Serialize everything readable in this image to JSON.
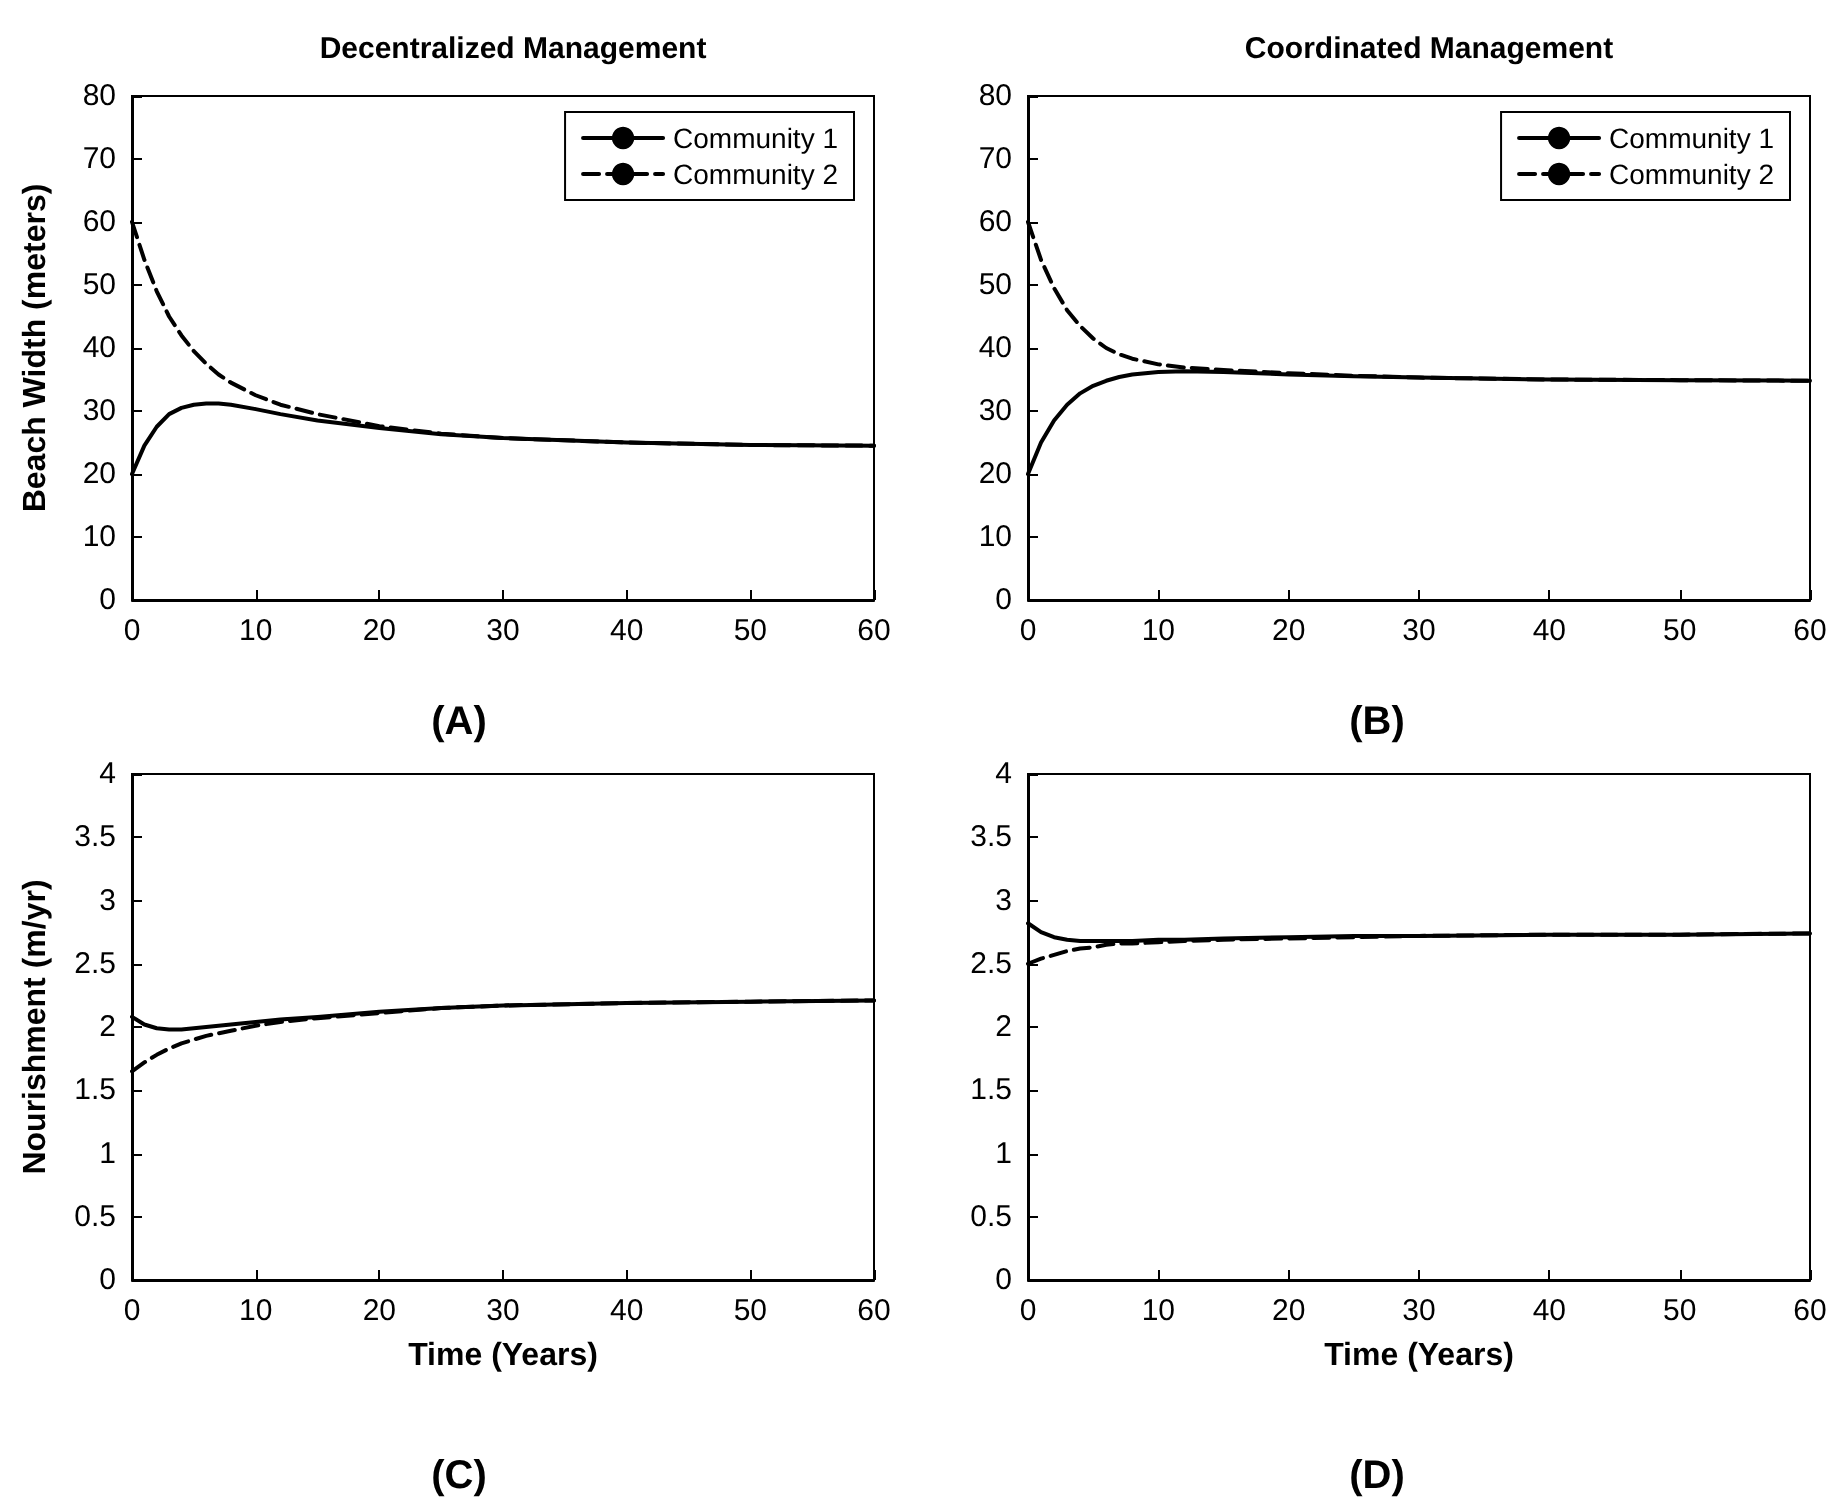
{
  "chart_data": [
    {
      "type": "line",
      "title": "Decentralized Management",
      "ylabel": "Beach Width (meters)",
      "annotations": [
        "(A)"
      ],
      "x": [
        0,
        1,
        2,
        3,
        4,
        5,
        6,
        7,
        8,
        10,
        12,
        15,
        20,
        25,
        30,
        40,
        50,
        60
      ],
      "xlim": [
        0,
        60
      ],
      "xticks": [
        0,
        10,
        20,
        30,
        40,
        50,
        60
      ],
      "ylim": [
        0,
        80
      ],
      "yticks": [
        0,
        10,
        20,
        30,
        40,
        50,
        60,
        70,
        80
      ],
      "grid": false,
      "legend": "top right",
      "marker": "none",
      "series": [
        {
          "name": "Community 1",
          "color": "#000000",
          "line_style": "solid",
          "values": [
            20,
            24.5,
            27.5,
            29.5,
            30.5,
            31,
            31.2,
            31.2,
            31,
            30.3,
            29.5,
            28.5,
            27.3,
            26.3,
            25.7,
            25,
            24.6,
            24.5
          ]
        },
        {
          "name": "Community 2",
          "color": "#000000",
          "line_style": "dashed",
          "values": [
            60,
            54,
            49,
            45,
            42,
            39.5,
            37.5,
            35.8,
            34.5,
            32.5,
            31,
            29.5,
            27.6,
            26.4,
            25.7,
            25,
            24.6,
            24.5
          ]
        }
      ]
    },
    {
      "type": "line",
      "title": "Coordinated Management",
      "annotations": [
        "(B)"
      ],
      "x": [
        0,
        1,
        2,
        3,
        4,
        5,
        6,
        7,
        8,
        10,
        12,
        15,
        20,
        25,
        30,
        40,
        50,
        60
      ],
      "xlim": [
        0,
        60
      ],
      "xticks": [
        0,
        10,
        20,
        30,
        40,
        50,
        60
      ],
      "ylim": [
        0,
        80
      ],
      "yticks": [
        0,
        10,
        20,
        30,
        40,
        50,
        60,
        70,
        80
      ],
      "grid": false,
      "legend": "top right",
      "marker": "none",
      "series": [
        {
          "name": "Community 1",
          "color": "#000000",
          "line_style": "solid",
          "values": [
            20,
            25,
            28.5,
            31,
            32.8,
            34,
            34.8,
            35.4,
            35.8,
            36.2,
            36.3,
            36.2,
            35.8,
            35.5,
            35.3,
            35,
            34.9,
            34.8
          ]
        },
        {
          "name": "Community 2",
          "color": "#000000",
          "line_style": "dashed",
          "values": [
            60,
            54,
            49.5,
            46,
            43.5,
            41.5,
            40,
            39,
            38.3,
            37.4,
            36.9,
            36.5,
            36,
            35.6,
            35.3,
            35,
            34.9,
            34.8
          ]
        }
      ]
    },
    {
      "type": "line",
      "xlabel": "Time (Years)",
      "ylabel": "Nourishment (m/yr)",
      "annotations": [
        "(C)"
      ],
      "x": [
        0,
        1,
        2,
        3,
        4,
        5,
        6,
        7,
        8,
        10,
        12,
        15,
        20,
        25,
        30,
        40,
        50,
        60
      ],
      "xlim": [
        0,
        60
      ],
      "xticks": [
        0,
        10,
        20,
        30,
        40,
        50,
        60
      ],
      "ylim": [
        0,
        4
      ],
      "yticks": [
        0,
        0.5,
        1,
        1.5,
        2,
        2.5,
        3,
        3.5,
        4
      ],
      "grid": false,
      "marker": "none",
      "series": [
        {
          "color": "#000000",
          "line_style": "solid",
          "values": [
            2.08,
            2.02,
            1.99,
            1.98,
            1.98,
            1.99,
            2.0,
            2.01,
            2.02,
            2.04,
            2.06,
            2.08,
            2.12,
            2.15,
            2.17,
            2.19,
            2.2,
            2.21
          ]
        },
        {
          "color": "#000000",
          "line_style": "dashed",
          "values": [
            1.65,
            1.72,
            1.78,
            1.83,
            1.87,
            1.9,
            1.93,
            1.95,
            1.97,
            2.01,
            2.04,
            2.07,
            2.11,
            2.15,
            2.17,
            2.19,
            2.2,
            2.21
          ]
        }
      ]
    },
    {
      "type": "line",
      "xlabel": "Time (Years)",
      "annotations": [
        "(D)"
      ],
      "x": [
        0,
        1,
        2,
        3,
        4,
        5,
        6,
        7,
        8,
        10,
        12,
        15,
        20,
        25,
        30,
        40,
        50,
        60
      ],
      "xlim": [
        0,
        60
      ],
      "xticks": [
        0,
        10,
        20,
        30,
        40,
        50,
        60
      ],
      "ylim": [
        0,
        4
      ],
      "yticks": [
        0,
        0.5,
        1,
        1.5,
        2,
        2.5,
        3,
        3.5,
        4
      ],
      "grid": false,
      "marker": "none",
      "series": [
        {
          "color": "#000000",
          "line_style": "solid",
          "values": [
            2.82,
            2.75,
            2.71,
            2.69,
            2.68,
            2.68,
            2.68,
            2.68,
            2.68,
            2.69,
            2.69,
            2.7,
            2.71,
            2.72,
            2.72,
            2.73,
            2.73,
            2.74
          ]
        },
        {
          "color": "#000000",
          "line_style": "dashed",
          "values": [
            2.5,
            2.54,
            2.57,
            2.6,
            2.62,
            2.63,
            2.65,
            2.66,
            2.66,
            2.67,
            2.68,
            2.69,
            2.7,
            2.71,
            2.72,
            2.73,
            2.73,
            2.74
          ]
        }
      ]
    }
  ]
}
